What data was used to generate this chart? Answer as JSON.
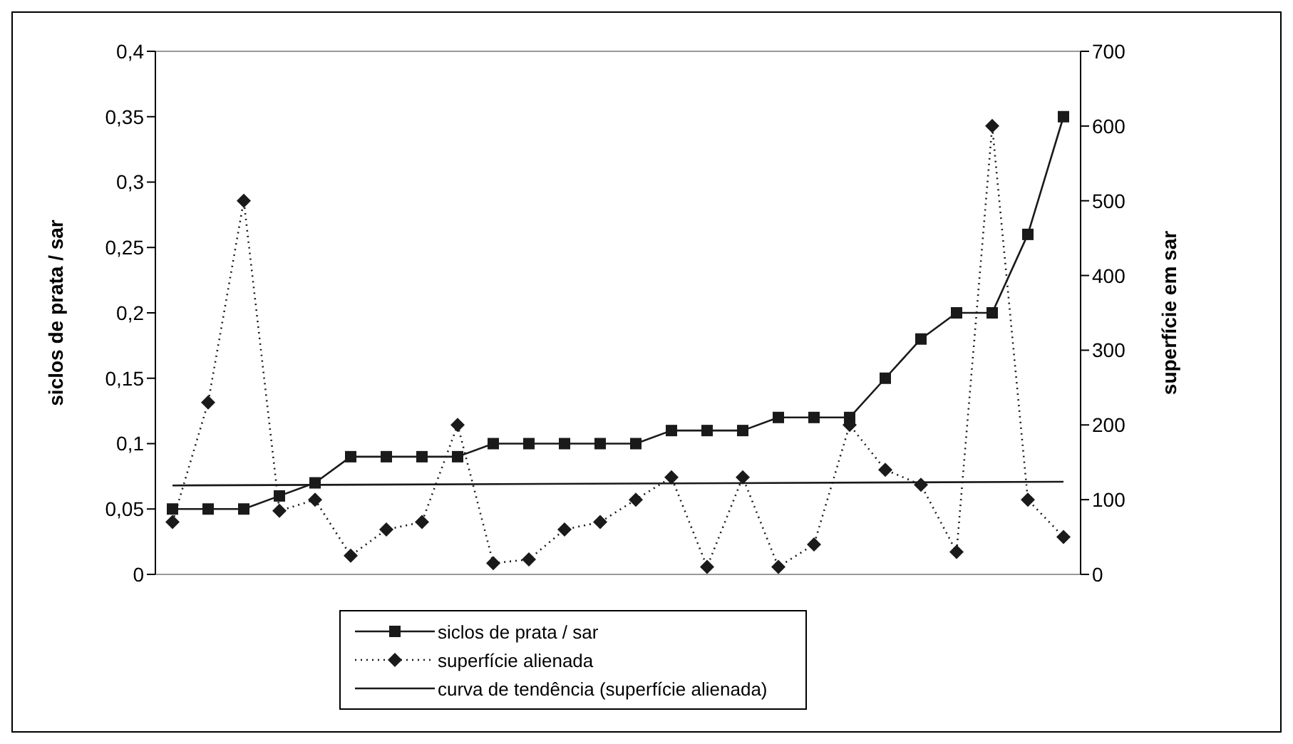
{
  "chart_data": {
    "type": "line",
    "ylabel": "siclos de prata / sar",
    "y2label": "superfície em sar",
    "categories": [
      null,
      null,
      null,
      null,
      null,
      null,
      null,
      null,
      null,
      null,
      null,
      null,
      null,
      null,
      null,
      null,
      null,
      null,
      null,
      null,
      null,
      null,
      null,
      null,
      null,
      null
    ],
    "series": [
      {
        "name": "siclos de prata / sar",
        "color": "#1a1a1a",
        "marker": "square",
        "line_style": "solid",
        "values": [
          0.05,
          0.05,
          0.05,
          0.06,
          0.07,
          0.09,
          0.09,
          0.09,
          0.09,
          0.1,
          0.1,
          0.1,
          0.1,
          0.1,
          0.11,
          0.11,
          0.11,
          0.12,
          0.12,
          0.12,
          0.15,
          0.18,
          0.2,
          0.2,
          0.26,
          0.35
        ]
      },
      {
        "name": "superfície alienada",
        "color": "#1a1a1a",
        "marker": "diamond",
        "line_style": "dotted",
        "axis": "y2",
        "values": [
          70,
          230,
          500,
          85,
          100,
          25,
          60,
          70,
          200,
          15,
          20,
          60,
          70,
          100,
          130,
          10,
          130,
          10,
          40,
          200,
          140,
          120,
          30,
          600,
          100,
          50
        ]
      },
      {
        "name": "curva de tendência (superfície alienada)",
        "color": "#1a1a1a",
        "marker": "none",
        "line_style": "solid",
        "axis": "y2",
        "values": [
          119,
          null,
          null,
          null,
          null,
          null,
          null,
          null,
          null,
          null,
          null,
          null,
          null,
          null,
          null,
          null,
          null,
          null,
          null,
          null,
          null,
          null,
          null,
          null,
          null,
          124
        ]
      }
    ],
    "ylim": [
      0,
      0.4
    ],
    "yticks": [
      0,
      {
        "value": 0.05,
        "label": "0,05"
      },
      {
        "value": 0.1,
        "label": "0,1"
      },
      {
        "value": 0.15,
        "label": "0,15"
      },
      {
        "value": 0.2,
        "label": "0,2"
      },
      {
        "value": 0.25,
        "label": "0,25"
      },
      {
        "value": 0.3,
        "label": "0,3"
      },
      {
        "value": 0.35,
        "label": "0,35"
      },
      {
        "value": 0.4,
        "label": "0,4"
      }
    ],
    "y2lim": [
      0,
      700
    ],
    "y2ticks": [
      0,
      100,
      200,
      300,
      400,
      500,
      600,
      700
    ],
    "legend": "bottom"
  }
}
